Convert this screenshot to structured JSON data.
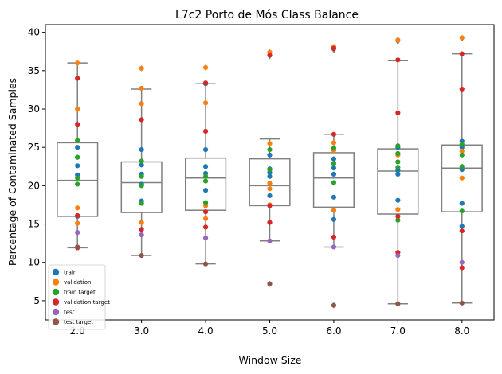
{
  "chart_data": {
    "type": "box",
    "title": "L7c2 Porto de Mós Class Balance",
    "xlabel": "Window Size",
    "ylabel": "Percentage of Contaminated Samples",
    "categories": [
      "2.0",
      "3.0",
      "4.0",
      "5.0",
      "6.0",
      "7.0",
      "8.0"
    ],
    "ylim": [
      2.5,
      41
    ],
    "yticks": [
      5,
      10,
      15,
      20,
      25,
      30,
      35,
      40
    ],
    "grid": false,
    "legend_position": "lower-left",
    "boxes": [
      {
        "whislo": 11.9,
        "q1": 16.0,
        "med": 20.7,
        "q3": 25.6,
        "whishi": 36.0,
        "fliers": []
      },
      {
        "whislo": 10.9,
        "q1": 16.5,
        "med": 20.4,
        "q3": 23.1,
        "whishi": 32.6,
        "fliers": [
          35.3
        ]
      },
      {
        "whislo": 9.8,
        "q1": 16.8,
        "med": 21.0,
        "q3": 23.6,
        "whishi": 33.3,
        "fliers": [
          35.4
        ]
      },
      {
        "whislo": 12.8,
        "q1": 17.4,
        "med": 20.0,
        "q3": 23.5,
        "whishi": 26.1,
        "fliers": [
          7.2,
          36.9,
          37.4
        ]
      },
      {
        "whislo": 12.0,
        "q1": 17.2,
        "med": 21.0,
        "q3": 24.3,
        "whishi": 26.7,
        "fliers": [
          4.4,
          37.7,
          38.1
        ]
      },
      {
        "whislo": 4.6,
        "q1": 16.3,
        "med": 21.9,
        "q3": 24.8,
        "whishi": 36.3,
        "fliers": [
          38.8
        ]
      },
      {
        "whislo": 4.7,
        "q1": 16.6,
        "med": 22.3,
        "q3": 25.3,
        "whishi": 37.2,
        "fliers": [
          39.2
        ]
      }
    ],
    "series": [
      {
        "name": "train",
        "color": "#1f77b4",
        "points": [
          {
            "x": "2.0",
            "y": [
              16.0,
              21.4,
              22.6,
              23.7,
              25.0
            ]
          },
          {
            "x": "3.0",
            "y": [
              18.0,
              20.2,
              21.5,
              22.7,
              24.7
            ]
          },
          {
            "x": "4.0",
            "y": [
              19.4,
              21.6,
              22.5,
              24.7,
              33.3
            ]
          },
          {
            "x": "5.0",
            "y": [
              18.7,
              21.2,
              21.7,
              22.2,
              24.0
            ]
          },
          {
            "x": "6.0",
            "y": [
              15.6,
              18.5,
              21.5,
              22.3,
              23.5
            ]
          },
          {
            "x": "7.0",
            "y": [
              18.1,
              21.5,
              22.0,
              25.0
            ]
          },
          {
            "x": "8.0",
            "y": [
              14.7,
              17.7,
              22.1,
              25.0,
              25.8
            ]
          }
        ]
      },
      {
        "name": "validation",
        "color": "#ff7f0e",
        "points": [
          {
            "x": "2.0",
            "y": [
              15.1,
              17.1,
              30.0,
              36.0
            ]
          },
          {
            "x": "3.0",
            "y": [
              15.2,
              30.7,
              32.7,
              35.3
            ]
          },
          {
            "x": "4.0",
            "y": [
              15.7,
              17.4,
              30.8,
              35.4
            ]
          },
          {
            "x": "5.0",
            "y": [
              17.5,
              19.6,
              20.3,
              25.5,
              37.4
            ]
          },
          {
            "x": "6.0",
            "y": [
              16.8,
              24.6,
              25.6,
              38.1
            ]
          },
          {
            "x": "7.0",
            "y": [
              16.9,
              24.0,
              39.0
            ]
          },
          {
            "x": "8.0",
            "y": [
              21.0,
              24.5,
              39.3
            ]
          }
        ]
      },
      {
        "name": "train target",
        "color": "#2ca02c",
        "points": [
          {
            "x": "2.0",
            "y": [
              20.2,
              21.0,
              23.7,
              25.9
            ]
          },
          {
            "x": "3.0",
            "y": [
              17.7,
              20.0,
              21.2,
              23.2
            ]
          },
          {
            "x": "4.0",
            "y": [
              17.8,
              20.6,
              21.2
            ]
          },
          {
            "x": "5.0",
            "y": [
              22.1,
              24.7
            ]
          },
          {
            "x": "6.0",
            "y": [
              20.4,
              22.9,
              24.9
            ]
          },
          {
            "x": "7.0",
            "y": [
              15.5,
              22.4,
              23.1,
              24.2,
              25.2
            ]
          },
          {
            "x": "8.0",
            "y": [
              16.7,
              22.5,
              24.0,
              25.4
            ]
          }
        ]
      },
      {
        "name": "validation target",
        "color": "#d62728",
        "points": [
          {
            "x": "2.0",
            "y": [
              11.9,
              16.1,
              28.0,
              34.0
            ]
          },
          {
            "x": "3.0",
            "y": [
              14.3,
              28.6
            ]
          },
          {
            "x": "4.0",
            "y": [
              14.6,
              16.6,
              27.1,
              33.4
            ]
          },
          {
            "x": "5.0",
            "y": [
              15.2,
              17.4,
              37.0
            ]
          },
          {
            "x": "6.0",
            "y": [
              13.3,
              26.7,
              37.9
            ]
          },
          {
            "x": "7.0",
            "y": [
              11.3,
              16.0,
              29.5,
              36.4
            ]
          },
          {
            "x": "8.0",
            "y": [
              9.3,
              14.1,
              32.6,
              37.2
            ]
          }
        ]
      },
      {
        "name": "test",
        "color": "#9467bd",
        "points": [
          {
            "x": "2.0",
            "y": [
              13.9
            ]
          },
          {
            "x": "3.0",
            "y": [
              13.6
            ]
          },
          {
            "x": "4.0",
            "y": [
              13.2
            ]
          },
          {
            "x": "5.0",
            "y": [
              12.8
            ]
          },
          {
            "x": "6.0",
            "y": [
              12.0
            ]
          },
          {
            "x": "7.0",
            "y": [
              10.9
            ]
          },
          {
            "x": "8.0",
            "y": [
              10.0
            ]
          }
        ]
      },
      {
        "name": "test target",
        "color": "#8c564b",
        "points": [
          {
            "x": "2.0",
            "y": [
              12.0
            ]
          },
          {
            "x": "3.0",
            "y": [
              10.9
            ]
          },
          {
            "x": "4.0",
            "y": [
              9.8
            ]
          },
          {
            "x": "5.0",
            "y": [
              7.2
            ]
          },
          {
            "x": "6.0",
            "y": [
              4.4
            ]
          },
          {
            "x": "7.0",
            "y": [
              4.6
            ]
          },
          {
            "x": "8.0",
            "y": [
              4.7
            ]
          }
        ]
      }
    ],
    "colors": {
      "box": "#808080",
      "axis": "#000000"
    }
  }
}
